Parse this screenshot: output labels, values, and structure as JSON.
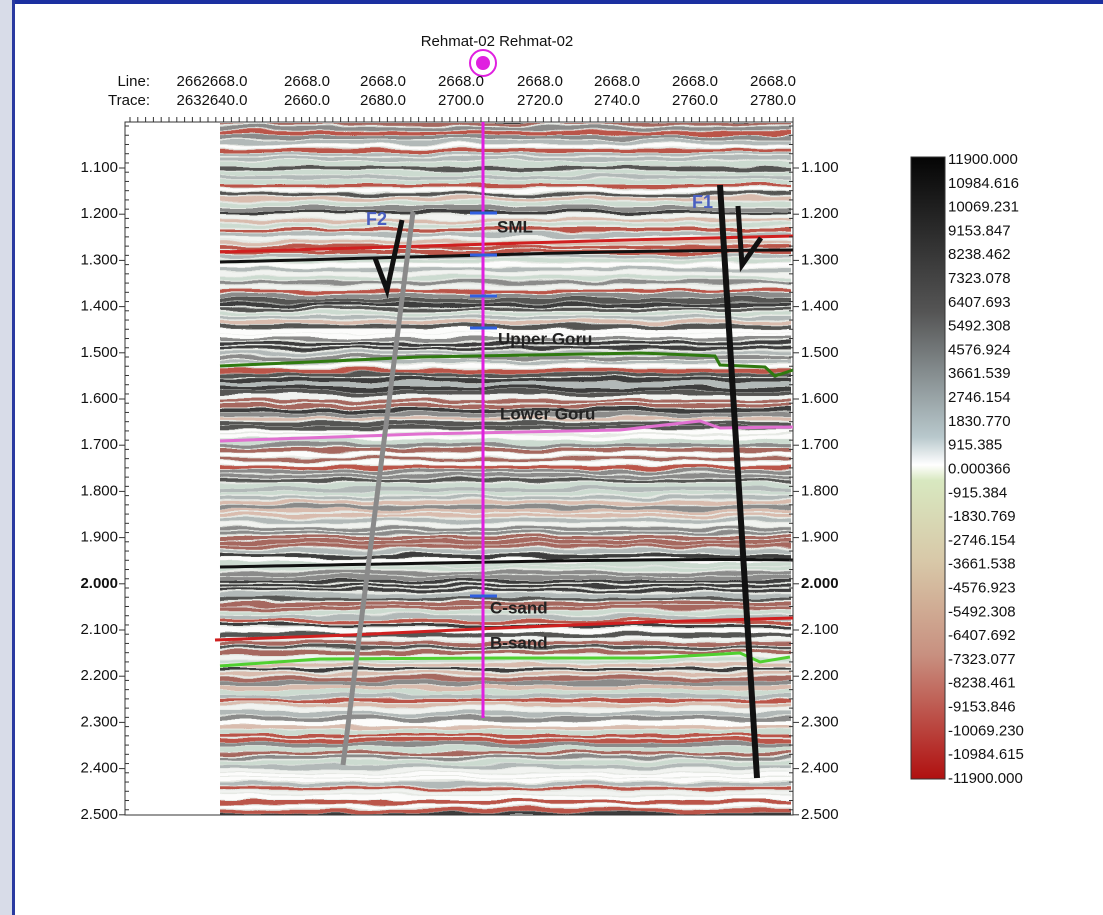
{
  "well": {
    "name": "Rehmat-02 Rehmat-02"
  },
  "header": {
    "line_label": "Line:",
    "trace_label": "Trace:",
    "line_values": [
      "2662668.0",
      "2668.0",
      "2668.0",
      "2668.0",
      "2668.0",
      "2668.0",
      "2668.0",
      "2668.0"
    ],
    "trace_values": [
      "2632640.0",
      "2660.0",
      "2680.0",
      "2700.0",
      "2720.0",
      "2740.0",
      "2760.0",
      "2780.0"
    ]
  },
  "time_axis": {
    "ticks": [
      "1.100",
      "1.200",
      "1.300",
      "1.400",
      "1.500",
      "1.600",
      "1.700",
      "1.800",
      "1.900",
      "2.000",
      "2.100",
      "2.200",
      "2.300",
      "2.400",
      "2.500"
    ]
  },
  "horizons": [
    "SML",
    "Upper Goru",
    "Lower Goru",
    "C-sand",
    "B-sand"
  ],
  "faults": [
    "F2",
    "F1"
  ],
  "colorbar": {
    "labels": [
      "11900.000",
      "10984.616",
      "10069.231",
      "9153.847",
      "8238.462",
      "7323.078",
      "6407.693",
      "5492.308",
      "4576.924",
      "3661.539",
      "2746.154",
      "1830.770",
      "915.385",
      "0.000366",
      "-915.384",
      "-1830.769",
      "-2746.154",
      "-3661.538",
      "-4576.923",
      "-5492.308",
      "-6407.692",
      "-7323.077",
      "-8238.461",
      "-9153.846",
      "-10069.230",
      "-10984.615",
      "-11900.000"
    ]
  }
}
